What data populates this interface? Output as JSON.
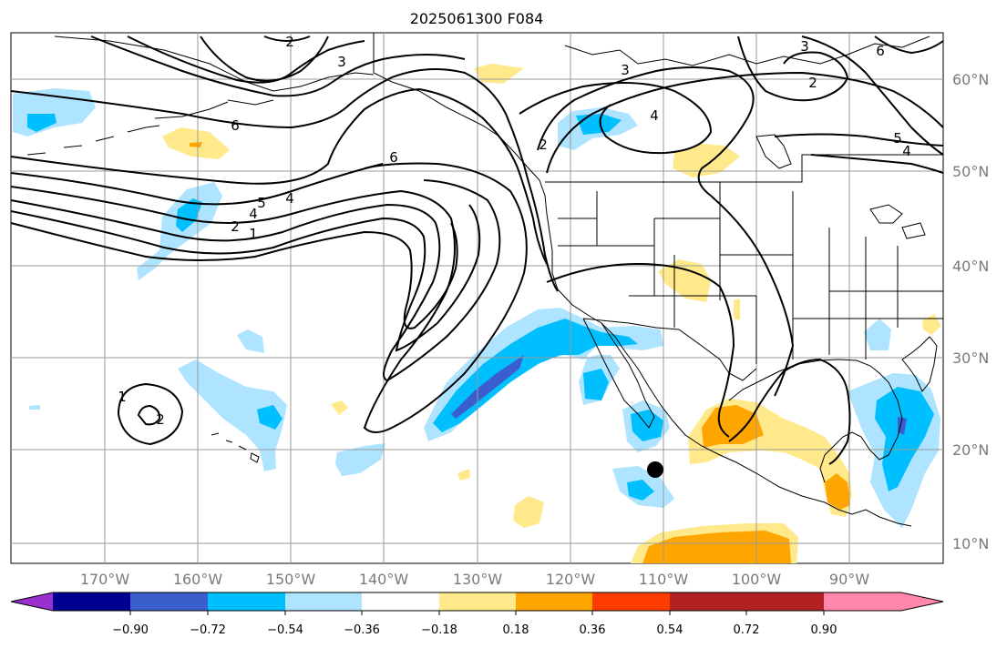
{
  "title": "2025061300 F084",
  "latitude_labels": [
    "60°N",
    "50°N",
    "40°N",
    "30°N",
    "20°N",
    "10°N"
  ],
  "longitude_labels": [
    "170°W",
    "160°W",
    "150°W",
    "140°W",
    "130°W",
    "120°W",
    "110°W",
    "100°W",
    "90°W"
  ],
  "colorbar": {
    "ticks": [
      "−0.90",
      "−0.72",
      "−0.54",
      "−0.36",
      "−0.18",
      "0.18",
      "0.36",
      "0.54",
      "0.72",
      "0.90"
    ],
    "colors": [
      "#9b30d0",
      "#000090",
      "#3a5fcd",
      "#00bfff",
      "#aee4ff",
      "#ffffff",
      "#ffe98a",
      "#ffa500",
      "#ff3c00",
      "#b22222",
      "#ff88aa"
    ]
  },
  "contour_labels": [
    "2",
    "3",
    "6",
    "3",
    "2",
    "3",
    "4",
    "5",
    "4",
    "6",
    "2",
    "4",
    "5",
    "4",
    "2",
    "1",
    "6",
    "1",
    "2"
  ],
  "markers": [
    {
      "name": "black-dot",
      "lon": -110.5,
      "lat": 18
    }
  ]
}
